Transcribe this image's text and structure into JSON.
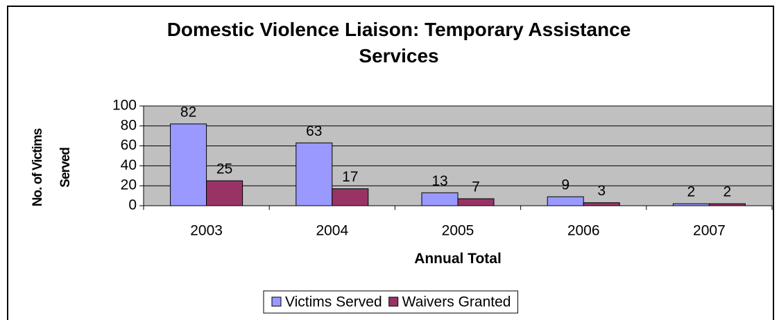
{
  "chart_data": {
    "type": "bar",
    "title": "Domestic Violence Liaison: Temporary Assistance Services",
    "x_label": "Annual Total",
    "y_label": "No. of Victims Served",
    "categories": [
      "2003",
      "2004",
      "2005",
      "2006",
      "2007"
    ],
    "series": [
      {
        "name": "Victims Served",
        "color": "#9999ff",
        "values": [
          82,
          63,
          13,
          9,
          2
        ]
      },
      {
        "name": "Waivers Granted",
        "color": "#993366",
        "values": [
          25,
          17,
          7,
          3,
          2
        ]
      }
    ],
    "ylim": [
      0,
      100
    ],
    "yticks": [
      0,
      20,
      40,
      60,
      80,
      100
    ],
    "grid": true,
    "legend": "bottom"
  }
}
